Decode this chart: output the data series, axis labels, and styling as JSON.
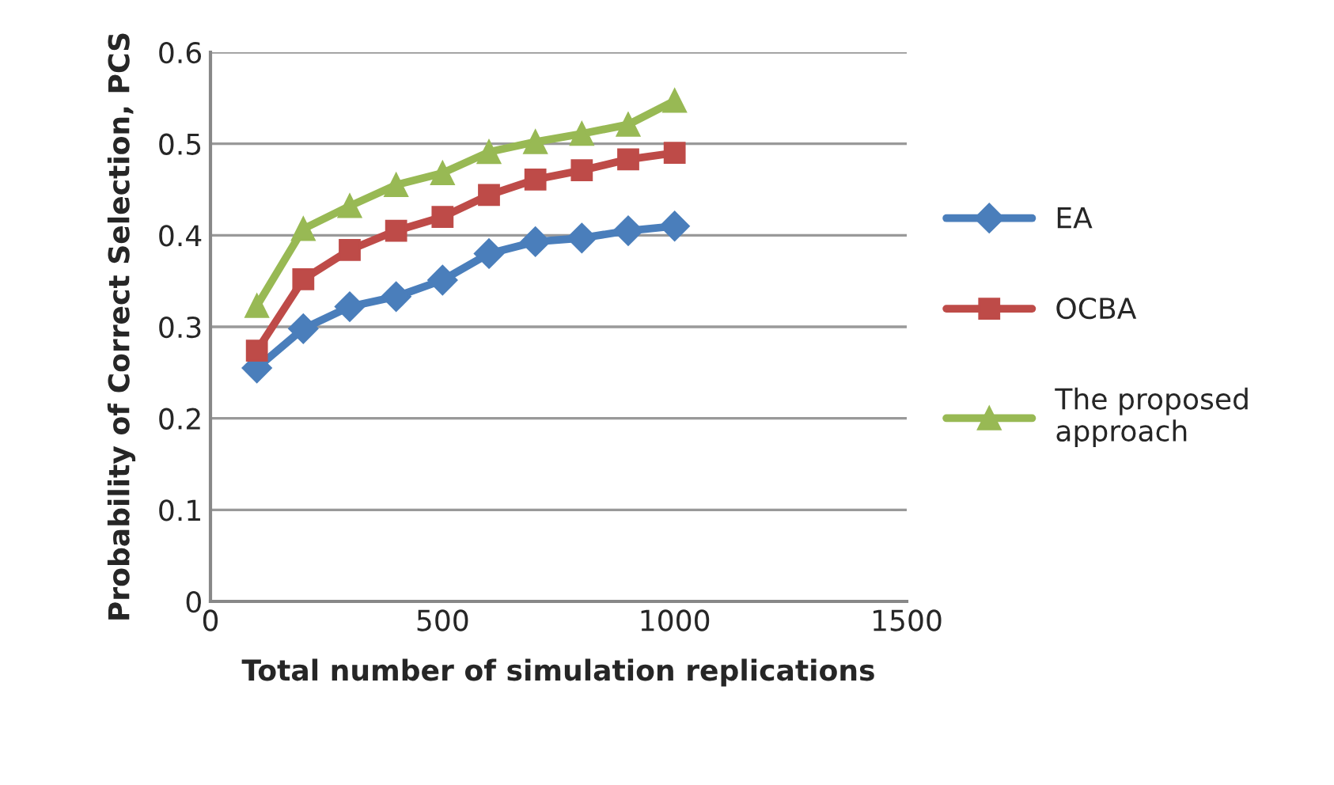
{
  "chart_data": {
    "type": "line",
    "xlabel": "Total number of simulation replications",
    "ylabel": "Probability of Correct Selection, PCS",
    "x": [
      100,
      200,
      300,
      400,
      500,
      600,
      700,
      800,
      900,
      1000
    ],
    "series": [
      {
        "name": "EA",
        "color": "#4a7ebb",
        "marker": "diamond",
        "values": [
          0.255,
          0.298,
          0.322,
          0.333,
          0.351,
          0.38,
          0.393,
          0.397,
          0.405,
          0.41
        ]
      },
      {
        "name": "OCBA",
        "color": "#be4b48",
        "marker": "square",
        "values": [
          0.274,
          0.352,
          0.384,
          0.405,
          0.42,
          0.444,
          0.461,
          0.471,
          0.483,
          0.49
        ]
      },
      {
        "name": "The proposed approach",
        "color": "#98b954",
        "marker": "triangle",
        "values": [
          0.323,
          0.407,
          0.432,
          0.455,
          0.468,
          0.491,
          0.502,
          0.511,
          0.521,
          0.547
        ]
      }
    ],
    "xlim": [
      0,
      1500
    ],
    "xticks": [
      0,
      500,
      1000,
      1500
    ],
    "ylim": [
      0,
      0.6
    ],
    "yticks": [
      0,
      0.1,
      0.2,
      0.3,
      0.4,
      0.5,
      0.6
    ],
    "grid": "y",
    "legend": "right",
    "line_style": "solid"
  }
}
